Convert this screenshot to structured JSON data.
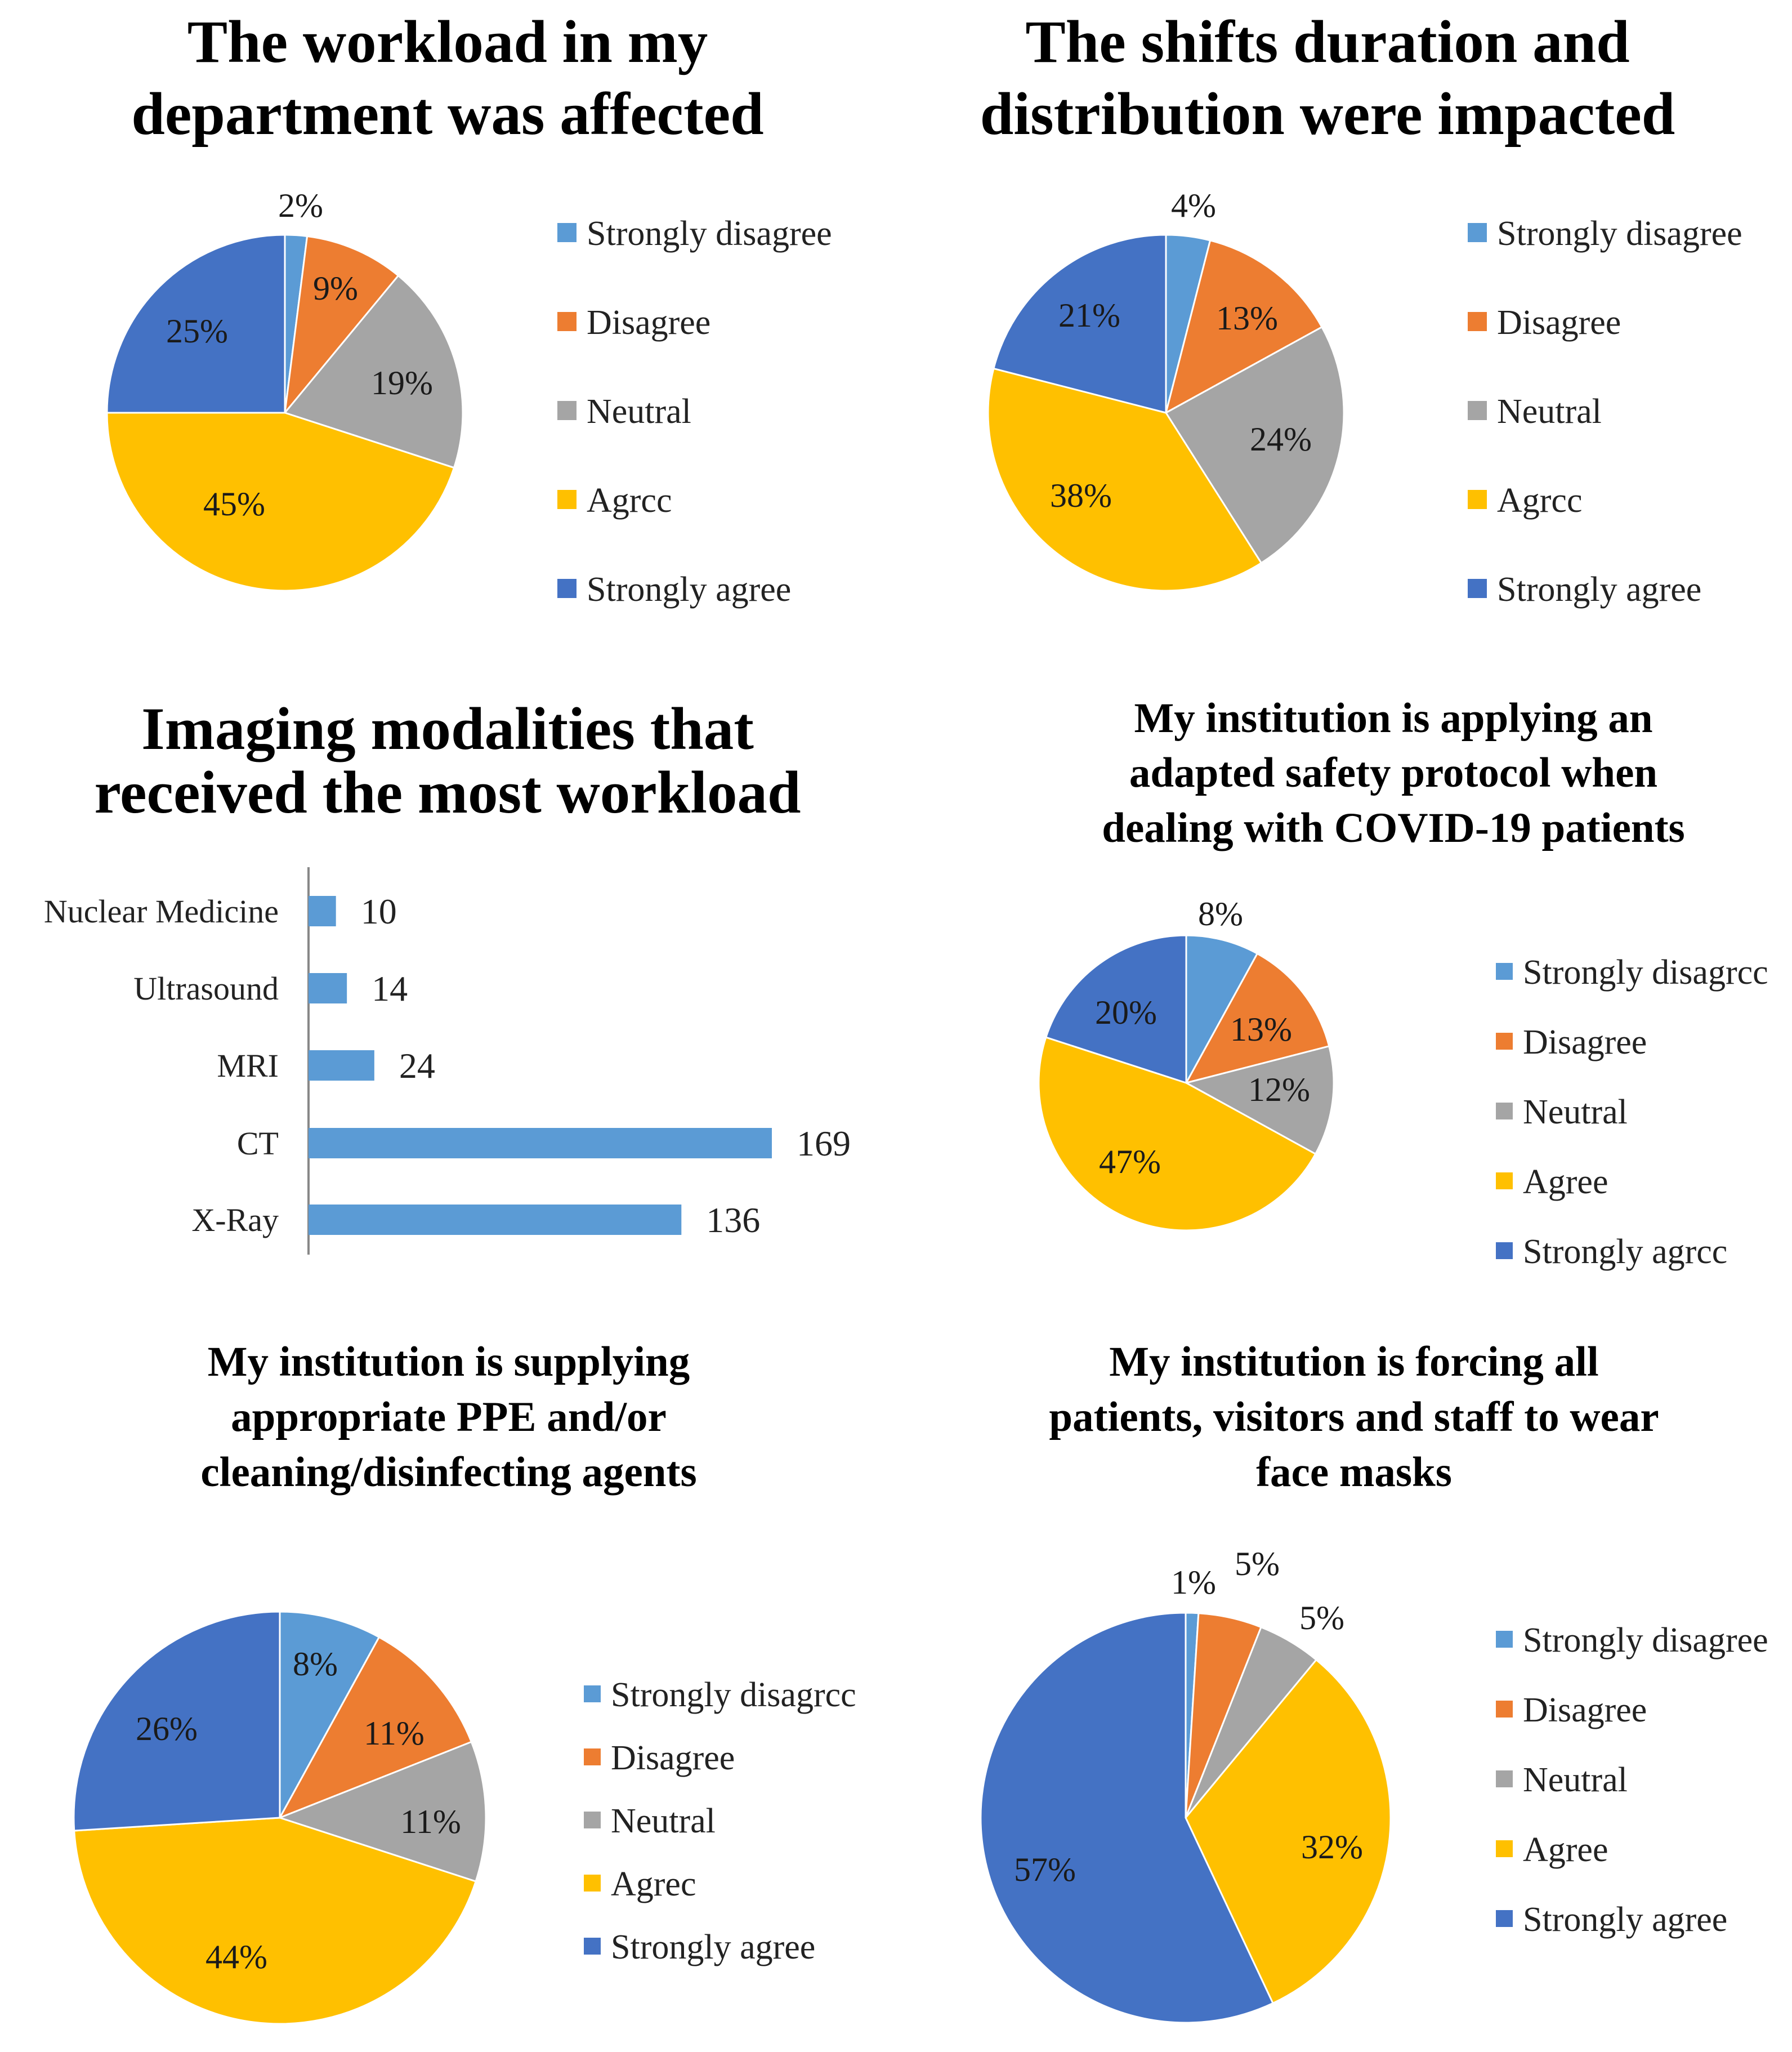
{
  "colors": {
    "strongly_disagree": "#5B9BD5",
    "disagree": "#ED7D31",
    "neutral": "#A5A5A5",
    "agree": "#FFC000",
    "strongly_agree": "#4472C4",
    "bar": "#5B9BD5"
  },
  "chart_data": [
    {
      "type": "pie",
      "title_lines": [
        "The workload in my",
        "department was affected"
      ],
      "categories": [
        "Strongly disagree",
        "Disagree",
        "Neutral",
        "Agrcc",
        "Strongly agree"
      ],
      "values": [
        2,
        9,
        19,
        45,
        25
      ],
      "labels": [
        "2%",
        "9%",
        "19%",
        "45%",
        "25%"
      ]
    },
    {
      "type": "pie",
      "title_lines": [
        "The shifts duration and",
        "distribution were impacted"
      ],
      "categories": [
        "Strongly disagree",
        "Disagree",
        "Neutral",
        "Agrcc",
        "Strongly agree"
      ],
      "values": [
        4,
        13,
        24,
        38,
        21
      ],
      "labels": [
        "4%",
        "13%",
        "24%",
        "38%",
        "21%"
      ]
    },
    {
      "type": "bar",
      "orientation": "horizontal",
      "title_lines": [
        "Imaging modalities that",
        "received the most workload"
      ],
      "categories": [
        "Nuclear Medicine",
        "Ultrasound",
        "MRI",
        "CT",
        "X-Ray"
      ],
      "values": [
        10,
        14,
        24,
        169,
        136
      ],
      "labels": [
        "10",
        "14",
        "24",
        "169",
        "136"
      ],
      "xlim": [
        0,
        169
      ]
    },
    {
      "type": "pie",
      "title_lines": [
        "My institution is applying an",
        "adapted safety protocol when",
        "dealing with COVID-19 patients"
      ],
      "categories": [
        "Strongly disagrcc",
        "Disagree",
        "Neutral",
        "Agree",
        "Strongly agrcc"
      ],
      "values": [
        8,
        13,
        12,
        47,
        20
      ],
      "labels": [
        "8%",
        "13%",
        "12%",
        "47%",
        "20%"
      ]
    },
    {
      "type": "pie",
      "title_lines": [
        "My institution is supplying",
        "appropriate PPE and/or",
        "cleaning/disinfecting agents"
      ],
      "categories": [
        "Strongly disagrcc",
        "Disagree",
        "Neutral",
        "Agrec",
        "Strongly agree"
      ],
      "values": [
        8,
        11,
        11,
        44,
        26
      ],
      "labels": [
        "8%",
        "11%",
        "11%",
        "44%",
        "26%"
      ]
    },
    {
      "type": "pie",
      "title_lines": [
        "My institution is forcing all",
        "patients, visitors and staff to wear",
        "face masks"
      ],
      "categories": [
        "Strongly disagree",
        "Disagree",
        "Neutral",
        "Agree",
        "Strongly agree"
      ],
      "values": [
        1,
        5,
        5,
        32,
        57
      ],
      "labels": [
        "1%",
        "5%",
        "5%",
        "32%",
        "57%"
      ]
    }
  ]
}
